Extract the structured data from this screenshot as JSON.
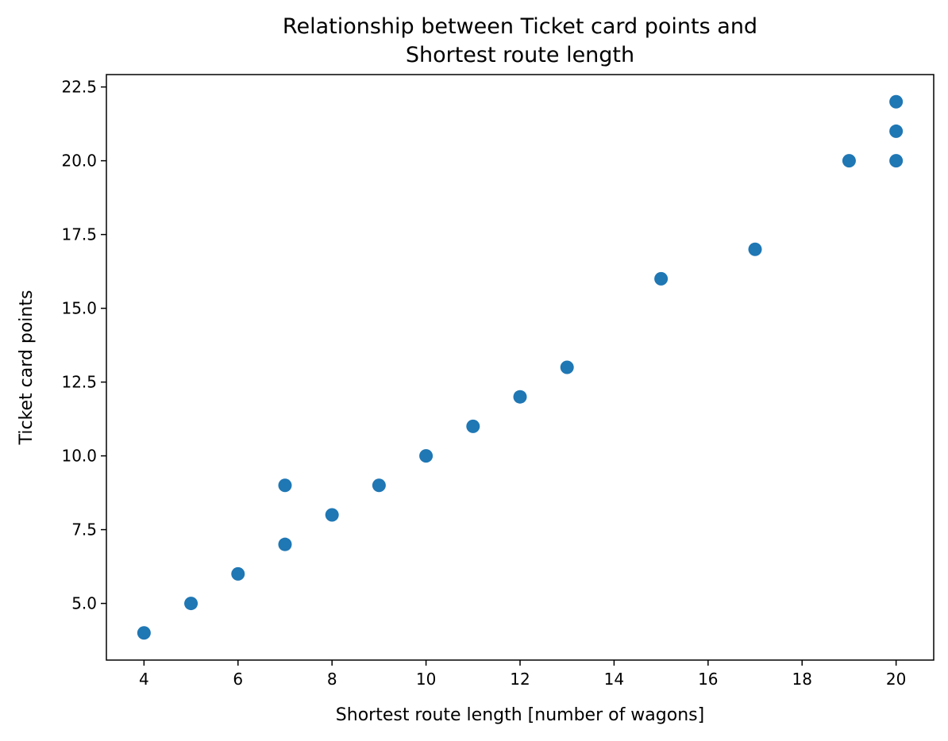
{
  "chart_data": {
    "type": "scatter",
    "title_lines": [
      "Relationship between Ticket card points and",
      "Shortest route length"
    ],
    "xlabel": "Shortest route length [number of wagons]",
    "ylabel": "Ticket card points",
    "xlim": [
      3.2,
      20.8
    ],
    "ylim": [
      3.08,
      22.92
    ],
    "xticks": [
      4,
      6,
      8,
      10,
      12,
      14,
      16,
      18,
      20
    ],
    "xtick_labels": [
      "4",
      "6",
      "8",
      "10",
      "12",
      "14",
      "16",
      "18",
      "20"
    ],
    "yticks": [
      5.0,
      7.5,
      10.0,
      12.5,
      15.0,
      17.5,
      20.0,
      22.5
    ],
    "ytick_labels": [
      "5.0",
      "7.5",
      "10.0",
      "12.5",
      "15.0",
      "17.5",
      "20.0",
      "22.5"
    ],
    "grid": false,
    "marker_color": "#1f77b4",
    "points": [
      {
        "x": 4,
        "y": 4
      },
      {
        "x": 5,
        "y": 5
      },
      {
        "x": 6,
        "y": 6
      },
      {
        "x": 7,
        "y": 7
      },
      {
        "x": 7,
        "y": 9
      },
      {
        "x": 8,
        "y": 8
      },
      {
        "x": 9,
        "y": 9
      },
      {
        "x": 10,
        "y": 10
      },
      {
        "x": 11,
        "y": 11
      },
      {
        "x": 12,
        "y": 12
      },
      {
        "x": 13,
        "y": 13
      },
      {
        "x": 15,
        "y": 16
      },
      {
        "x": 17,
        "y": 17
      },
      {
        "x": 19,
        "y": 20
      },
      {
        "x": 20,
        "y": 20
      },
      {
        "x": 20,
        "y": 21
      },
      {
        "x": 20,
        "y": 22
      }
    ]
  }
}
